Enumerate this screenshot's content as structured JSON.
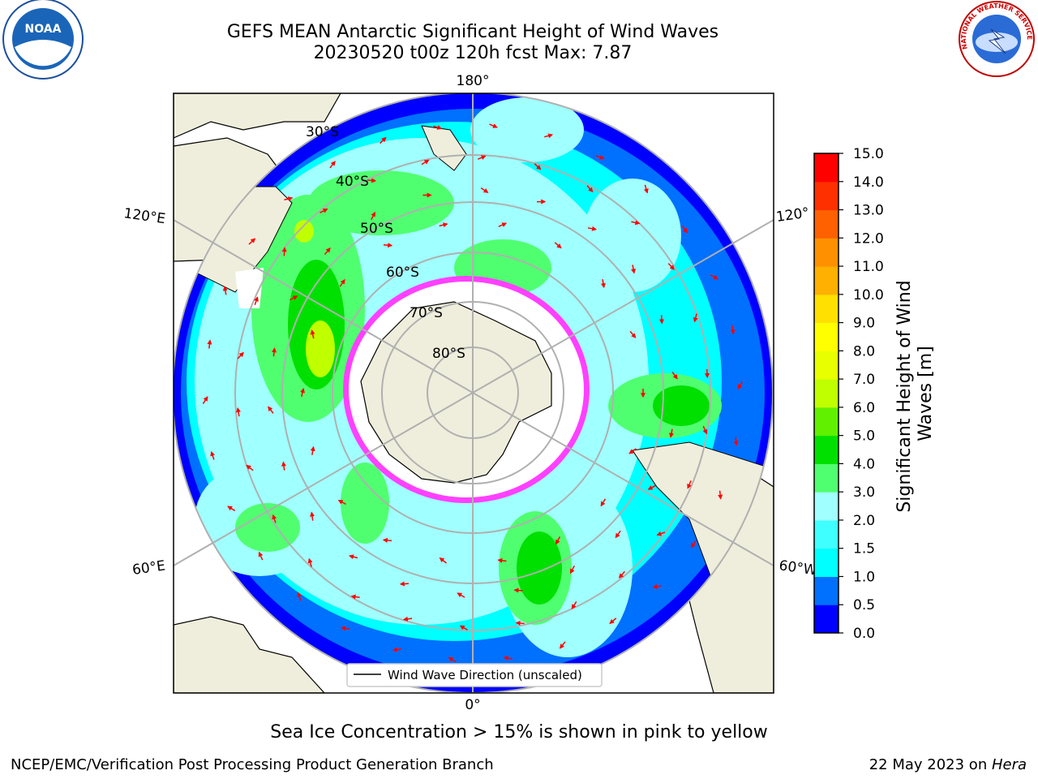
{
  "title": {
    "line1": "GEFS MEAN Antarctic Significant Height of Wind Waves",
    "line2": "20230520 t00z 120h fcst   Max: 7.87"
  },
  "logos": {
    "left": {
      "icon": "noaa-logo",
      "text": "NOAA"
    },
    "right": {
      "icon": "national-weather-service-logo",
      "text": "NATIONAL WEATHER SERVICE"
    }
  },
  "map": {
    "projection": "south-polar-stereographic",
    "longitude_labels": {
      "top": "180°",
      "bottom": "0°",
      "upper_left": "120°E",
      "lower_left": "60°E",
      "upper_right": "120°",
      "lower_right": "60°W"
    },
    "latitude_labels": [
      "30°S",
      "40°S",
      "50°S",
      "60°S",
      "70°S",
      "80°S"
    ],
    "legend": "Wind Wave Direction (unscaled)",
    "sea_ice_note": "Sea Ice Concentration > 15% is shown in pink to yellow",
    "arrow_color": "#ff0000"
  },
  "colorbar": {
    "label": "Significant Height of Wind Waves [m]",
    "label_line1": "Significant Height of Wind",
    "label_line2": "Waves [m]",
    "ticks": [
      "0.0",
      "0.5",
      "1.0",
      "1.5",
      "2.0",
      "3.0",
      "4.0",
      "5.0",
      "6.0",
      "7.0",
      "8.0",
      "9.0",
      "10.0",
      "11.0",
      "12.0",
      "13.0",
      "14.0",
      "15.0"
    ],
    "colors": [
      "#0000ff",
      "#0070ff",
      "#00ffff",
      "#40ffff",
      "#a0ffff",
      "#50ff70",
      "#00e000",
      "#60f000",
      "#c0ff00",
      "#e8ff00",
      "#ffff00",
      "#ffe000",
      "#ffb000",
      "#ff9000",
      "#ff6000",
      "#ff3000",
      "#ff0000"
    ]
  },
  "footer": {
    "left": "NCEP/EMC/Verification Post Processing Product Generation Branch",
    "date": "22 May 2023 on ",
    "machine": "Hera"
  }
}
